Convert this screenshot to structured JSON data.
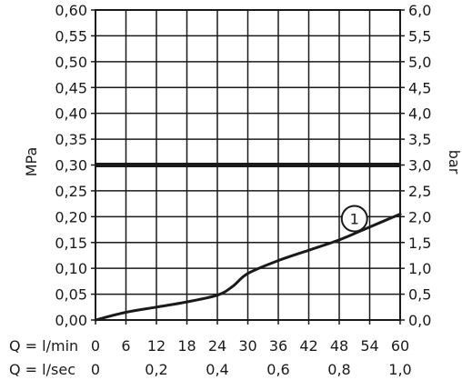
{
  "chart_data": {
    "type": "line",
    "title": "",
    "ylabel_left": "MPa",
    "ylabel_right": "bar",
    "ylim": [
      0,
      0.6
    ],
    "yticks_left": [
      "0,00",
      "0,05",
      "0,10",
      "0,15",
      "0,20",
      "0,25",
      "0,30",
      "0,35",
      "0,40",
      "0,45",
      "0,50",
      "0,55",
      "0,60"
    ],
    "yticks_right": [
      "0,0",
      "0,5",
      "1,0",
      "1,5",
      "2,0",
      "2,5",
      "3,0",
      "3,5",
      "4,0",
      "4,5",
      "5,0",
      "5,5",
      "6,0"
    ],
    "xlim": [
      0,
      60
    ],
    "x_rows": [
      {
        "label": "Q = l/min",
        "ticks": [
          {
            "x": 0,
            "label": "0"
          },
          {
            "x": 6,
            "label": "6"
          },
          {
            "x": 12,
            "label": "12"
          },
          {
            "x": 18,
            "label": "18"
          },
          {
            "x": 24,
            "label": "24"
          },
          {
            "x": 30,
            "label": "30"
          },
          {
            "x": 36,
            "label": "36"
          },
          {
            "x": 42,
            "label": "42"
          },
          {
            "x": 48,
            "label": "48"
          },
          {
            "x": 54,
            "label": "54"
          },
          {
            "x": 60,
            "label": "60"
          }
        ]
      },
      {
        "label": "Q = l/sec",
        "ticks": [
          {
            "x": 0,
            "label": "0"
          },
          {
            "x": 12,
            "label": "0,2"
          },
          {
            "x": 24,
            "label": "0,4"
          },
          {
            "x": 36,
            "label": "0,6"
          },
          {
            "x": 48,
            "label": "0,8"
          },
          {
            "x": 60,
            "label": "1,0"
          }
        ]
      }
    ],
    "grid": true,
    "reference_line": {
      "y": 0.3
    },
    "series": [
      {
        "x": [
          0,
          6,
          12,
          18,
          24,
          27,
          30,
          36,
          42,
          48,
          54,
          60
        ],
        "y": [
          0,
          0.015,
          0.025,
          0.035,
          0.048,
          0.065,
          0.09,
          0.115,
          0.135,
          0.155,
          0.18,
          0.205
        ]
      }
    ],
    "callout": {
      "text": "1",
      "x": 51,
      "y": 0.168
    },
    "colors": {
      "line": "#1a1a1a",
      "grid": "#1a1a1a",
      "background": "#ffffff"
    }
  }
}
